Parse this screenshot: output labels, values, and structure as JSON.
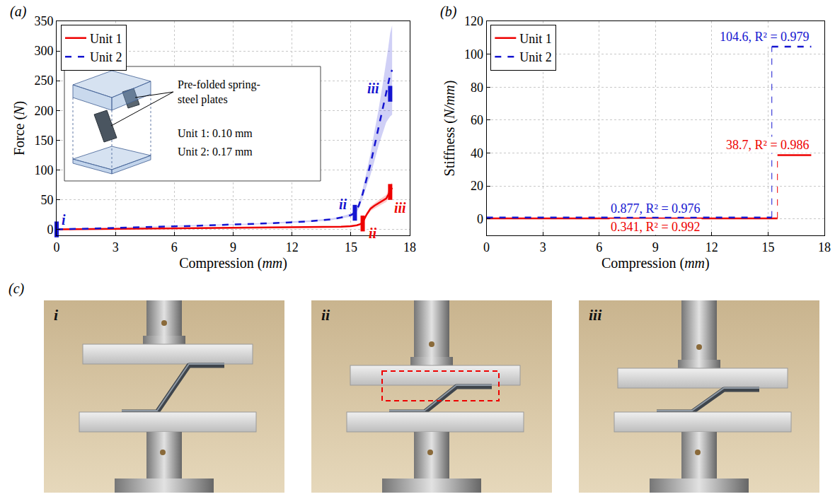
{
  "chart_data": [
    {
      "panel": "(a)",
      "type": "line",
      "x_label": "Compression (mm)",
      "y_label": "Force (N)",
      "xlim": [
        0,
        18
      ],
      "xticks": [
        0,
        3,
        6,
        9,
        12,
        15,
        18
      ],
      "ylim": [
        -10,
        350
      ],
      "yticks": [
        0,
        50,
        100,
        150,
        200,
        250,
        300,
        350
      ],
      "grid": true,
      "legend": "upper left",
      "series": [
        {
          "name": "Unit 1",
          "color": "#ee0000",
          "line_style": "solid",
          "x": [
            0,
            1,
            2,
            3,
            4,
            5,
            6,
            7,
            8,
            9,
            10,
            11,
            12,
            13,
            14,
            14.5,
            15,
            15.3,
            15.5,
            15.6,
            15.8,
            16,
            16.2,
            16.4,
            16.6,
            16.8,
            16.9,
            17,
            17.1
          ],
          "values": [
            0,
            0.3,
            0.6,
            0.9,
            1.1,
            1.3,
            1.5,
            1.7,
            1.9,
            2.1,
            2.4,
            2.7,
            3,
            3.4,
            4,
            4.5,
            5.5,
            7,
            9,
            12,
            25,
            35,
            40,
            44,
            48,
            52,
            58,
            65,
            70
          ],
          "lower": [
            0,
            0.1,
            0.4,
            0.7,
            0.9,
            1.1,
            1.3,
            1.5,
            1.7,
            1.9,
            2.2,
            2.5,
            2.8,
            3.1,
            3.6,
            4,
            4.9,
            6.2,
            8,
            10.5,
            22,
            31,
            35.5,
            39,
            42.5,
            46,
            51,
            57,
            60
          ],
          "upper": [
            0,
            0.5,
            0.8,
            1.1,
            1.3,
            1.5,
            1.7,
            1.9,
            2.1,
            2.3,
            2.6,
            2.9,
            3.2,
            3.7,
            4.4,
            5,
            6.1,
            7.8,
            10,
            13.5,
            28,
            39,
            44.5,
            49,
            53.5,
            58,
            65,
            73,
            80
          ],
          "stages": [
            {
              "label": "ii",
              "x": 15.6,
              "y": 10
            },
            {
              "label": "iii",
              "x": 17,
              "y": 63
            }
          ]
        },
        {
          "name": "Unit 2",
          "color": "#1515d0",
          "line_style": "dashed",
          "x": [
            0,
            1,
            2,
            3,
            4,
            5,
            6,
            7,
            8,
            9,
            10,
            11,
            12,
            13,
            14,
            14.5,
            15,
            15.2,
            15.4,
            15.6,
            15.8,
            16,
            16.2,
            16.4,
            16.6,
            16.8,
            16.9,
            17,
            17.1
          ],
          "values": [
            0,
            1,
            2,
            3,
            3.8,
            4.5,
            5.2,
            6,
            7,
            8,
            9,
            10.5,
            12,
            14,
            17,
            20,
            24,
            28,
            40,
            60,
            85,
            110,
            140,
            170,
            200,
            230,
            245,
            260,
            268
          ],
          "lower": [
            0,
            0.5,
            1.5,
            2.5,
            3.2,
            3.8,
            4.5,
            5.2,
            6.2,
            7.1,
            8,
            9.4,
            10.8,
            12.6,
            15.4,
            18.2,
            21.5,
            24.5,
            35,
            52,
            73,
            92,
            115,
            140,
            160,
            180,
            185,
            190,
            193
          ],
          "upper": [
            0,
            1.5,
            2.5,
            3.5,
            4.4,
            5.2,
            5.9,
            6.8,
            7.8,
            8.9,
            10,
            11.6,
            13.2,
            15.4,
            18.6,
            21.8,
            26.5,
            31.5,
            45,
            68,
            97,
            128,
            165,
            200,
            240,
            280,
            305,
            330,
            343
          ],
          "stages": [
            {
              "label": "i",
              "x": 0,
              "y": 0
            },
            {
              "label": "ii",
              "x": 15.2,
              "y": 28
            },
            {
              "label": "iii",
              "x": 17,
              "y": 228
            }
          ]
        }
      ],
      "inset": {
        "label": "Pre-folded spring-steel plates",
        "lines": [
          "Unit 1: 0.10 mm",
          "Unit 2: 0.17 mm"
        ]
      }
    },
    {
      "panel": "(b)",
      "type": "step",
      "x_label": "Compression (mm)",
      "y_label": "Stiffness (N/mm)",
      "xlim": [
        0,
        18
      ],
      "xticks": [
        0,
        3,
        6,
        9,
        12,
        15,
        18
      ],
      "ylim": [
        -10,
        120
      ],
      "yticks": [
        0,
        20,
        40,
        60,
        80,
        100,
        120
      ],
      "grid": true,
      "legend": "upper left",
      "series": [
        {
          "name": "Unit 1",
          "color": "#ee0000",
          "line_style": "solid",
          "x": [
            0,
            15.5,
            15.5,
            17.3
          ],
          "values": [
            0.341,
            0.341,
            38.7,
            38.7
          ]
        },
        {
          "name": "Unit 2",
          "color": "#1515d0",
          "line_style": "dashed",
          "x": [
            0,
            15.2,
            15.2,
            17.3
          ],
          "values": [
            0.877,
            0.877,
            104.6,
            104.6
          ]
        }
      ],
      "annotations": [
        {
          "text": "104.6, R² = 0.979",
          "x": 17.3,
          "y": 104.6,
          "color": "#1515d0"
        },
        {
          "text": "38.7, R² = 0.986",
          "x": 17.3,
          "y": 38.7,
          "color": "#ee0000"
        },
        {
          "text": "0.877, R² = 0.976",
          "x": 9,
          "y": 0.877,
          "color": "#1515d0"
        },
        {
          "text": "0.341, R² = 0.992",
          "x": 9,
          "y": 0.341,
          "color": "#ee0000"
        }
      ]
    }
  ],
  "photos": {
    "panel": "(c)",
    "labels": [
      "i",
      "ii",
      "iii"
    ]
  }
}
